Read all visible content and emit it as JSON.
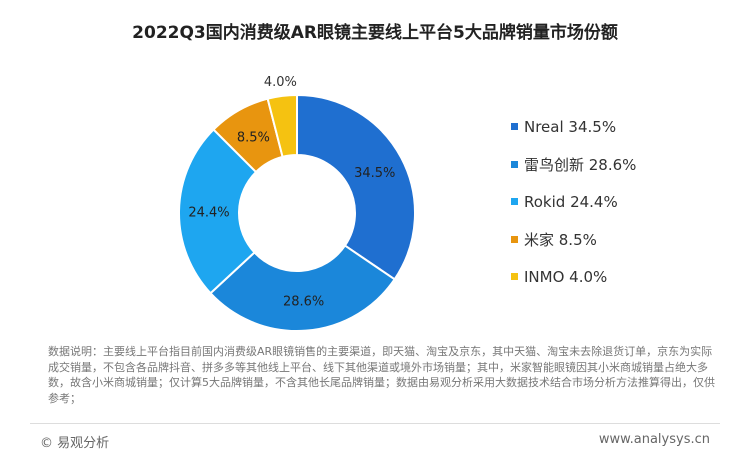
{
  "chart_data": {
    "type": "pie",
    "title": "2022Q3国内消费级AR眼镜主要线上平台5大品牌销量市场份额",
    "categories": [
      "Nreal",
      "雷鸟创新",
      "Rokid",
      "米家",
      "INMO"
    ],
    "values": [
      34.5,
      28.6,
      24.4,
      8.5,
      4.0
    ],
    "colors": [
      "#1f6fd0",
      "#1b87da",
      "#1ea6f0",
      "#e8950f",
      "#f5c211"
    ],
    "data_labels": [
      "34.5%",
      "28.6%",
      "24.4%",
      "8.5%",
      "4.0%"
    ],
    "legend_labels": [
      "Nreal 34.5%",
      "雷鸟创新 28.6%",
      "Rokid 24.4%",
      "米家 8.5%",
      "INMO 4.0%"
    ],
    "legend_position": "right",
    "donut": true
  },
  "note": "数据说明：主要线上平台指目前国内消费级AR眼镜销售的主要渠道，即天猫、淘宝及京东，其中天猫、淘宝未去除退货订单，京东为实际成交销量，不包含各品牌抖音、拼多多等其他线上平台、线下其他渠道或境外市场销量；其中，米家智能眼镜因其小米商城销量占绝大多数，故含小米商城销量；仅计算5大品牌销量，不含其他长尾品牌销量；数据由易观分析采用大数据技术结合市场分析方法推算得出，仅供参考；",
  "footer": {
    "left": "© 易观分析",
    "right": "www.analysys.cn"
  }
}
